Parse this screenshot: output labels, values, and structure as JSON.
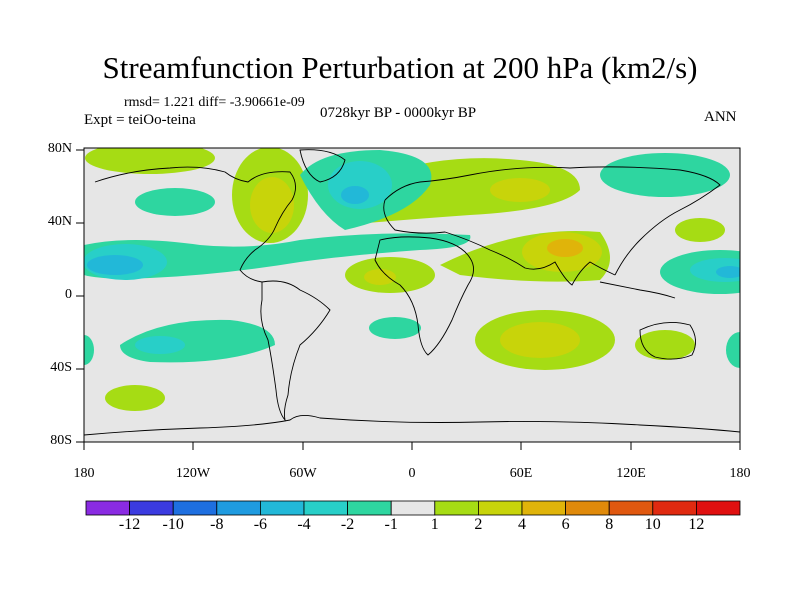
{
  "title": "Streamfunction Perturbation at 200 hPa (km2/s)",
  "stats": "rmsd= 1.221 diff= -3.90661e-09",
  "experiment": "Expt = teiOo-teina",
  "period": "0728kyr BP - 0000kyr BP",
  "season": "ANN",
  "lat_labels": [
    "80N",
    "40N",
    "0",
    "40S",
    "80S"
  ],
  "lon_labels": [
    "180",
    "120W",
    "60W",
    "0",
    "60E",
    "120E",
    "180"
  ],
  "colorbar": {
    "labels": [
      "-12",
      "-10",
      "-8",
      "-6",
      "-4",
      "-2",
      "-1",
      "1",
      "2",
      "4",
      "6",
      "8",
      "10",
      "12"
    ],
    "colors": [
      "#8a2be2",
      "#3b3be0",
      "#1e6fe0",
      "#1f9be0",
      "#22b8d8",
      "#28cfc8",
      "#2ed6a0",
      "#e6e6e6",
      "#a6dc14",
      "#c8d40a",
      "#e0b40a",
      "#e08a0a",
      "#e0580f",
      "#e02a10",
      "#e01010"
    ]
  },
  "colors": {
    "background": "#e6e6e6",
    "neg1": "#2ed6a0",
    "neg2": "#28cfc8",
    "neg4": "#22b8d8",
    "pos1": "#a6dc14",
    "pos2": "#c8d40a",
    "pos4": "#e0b40a"
  }
}
